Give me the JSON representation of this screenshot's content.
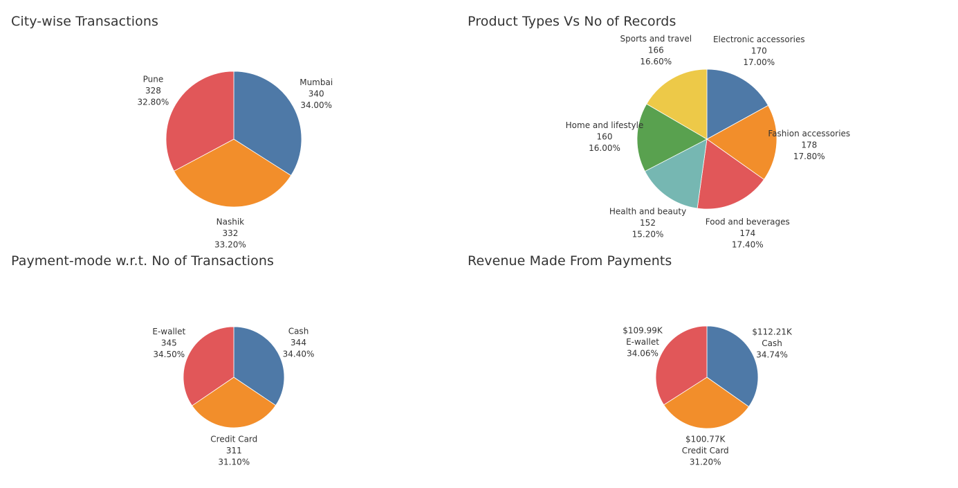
{
  "chart_data": [
    {
      "type": "pie",
      "title": "City-wise Transactions",
      "label_format": "name_value_pct",
      "slices": [
        {
          "name": "Mumbai",
          "value": 340,
          "value_label": "340",
          "percent_label": "34.00%",
          "color": "#4e79a7"
        },
        {
          "name": "Nashik",
          "value": 332,
          "value_label": "332",
          "percent_label": "33.20%",
          "color": "#f28e2b"
        },
        {
          "name": "Pune",
          "value": 328,
          "value_label": "328",
          "percent_label": "32.80%",
          "color": "#e15759"
        }
      ]
    },
    {
      "type": "pie",
      "title": "Product Types Vs No of Records",
      "label_format": "name_value_pct",
      "slices": [
        {
          "name": "Electronic accessories",
          "value": 170,
          "value_label": "170",
          "percent_label": "17.00%",
          "color": "#4e79a7"
        },
        {
          "name": "Fashion accessories",
          "value": 178,
          "value_label": "178",
          "percent_label": "17.80%",
          "color": "#f28e2b"
        },
        {
          "name": "Food and beverages",
          "value": 174,
          "value_label": "174",
          "percent_label": "17.40%",
          "color": "#e15759"
        },
        {
          "name": "Health and beauty",
          "value": 152,
          "value_label": "152",
          "percent_label": "15.20%",
          "color": "#76b7b2"
        },
        {
          "name": "Home and lifestyle",
          "value": 160,
          "value_label": "160",
          "percent_label": "16.00%",
          "color": "#59a14f"
        },
        {
          "name": "Sports and travel",
          "value": 166,
          "value_label": "166",
          "percent_label": "16.60%",
          "color": "#edc948"
        }
      ]
    },
    {
      "type": "pie",
      "title": "Payment-mode w.r.t. No of Transactions",
      "label_format": "name_value_pct",
      "slices": [
        {
          "name": "Cash",
          "value": 344,
          "value_label": "344",
          "percent_label": "34.40%",
          "color": "#4e79a7"
        },
        {
          "name": "Credit Card",
          "value": 311,
          "value_label": "311",
          "percent_label": "31.10%",
          "color": "#f28e2b"
        },
        {
          "name": "E-wallet",
          "value": 345,
          "value_label": "345",
          "percent_label": "34.50%",
          "color": "#e15759"
        }
      ]
    },
    {
      "type": "pie",
      "title": "Revenue Made From Payments",
      "label_format": "value_name_pct",
      "slices": [
        {
          "name": "Cash",
          "value": 112.21,
          "value_label": "$112.21K",
          "percent_label": "34.74%",
          "color": "#4e79a7"
        },
        {
          "name": "Credit Card",
          "value": 100.77,
          "value_label": "$100.77K",
          "percent_label": "31.20%",
          "color": "#f28e2b"
        },
        {
          "name": "E-wallet",
          "value": 109.99,
          "value_label": "$109.99K",
          "percent_label": "34.06%",
          "color": "#e15759"
        }
      ]
    }
  ]
}
